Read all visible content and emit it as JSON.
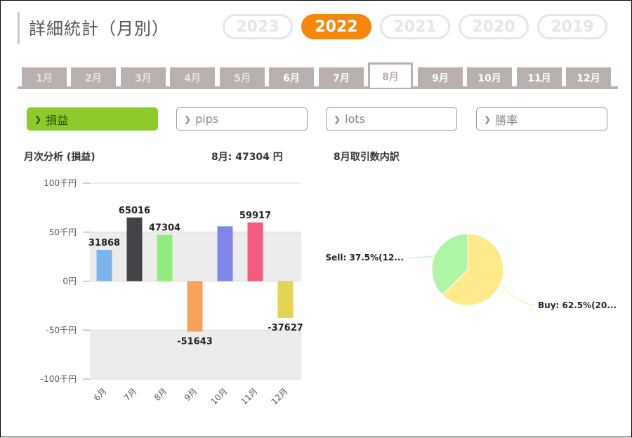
{
  "header": {
    "title": "詳細統計（月別）"
  },
  "years": [
    {
      "label": "2023",
      "state": "disabled"
    },
    {
      "label": "2022",
      "state": "active"
    },
    {
      "label": "2021",
      "state": "disabled"
    },
    {
      "label": "2020",
      "state": "disabled"
    },
    {
      "label": "2019",
      "state": "disabled"
    }
  ],
  "months": [
    {
      "label": "1月",
      "state": "disabled"
    },
    {
      "label": "2月",
      "state": "disabled"
    },
    {
      "label": "3月",
      "state": "disabled"
    },
    {
      "label": "4月",
      "state": "disabled"
    },
    {
      "label": "5月",
      "state": "disabled"
    },
    {
      "label": "6月",
      "state": "enabled"
    },
    {
      "label": "7月",
      "state": "enabled"
    },
    {
      "label": "8月",
      "state": "active"
    },
    {
      "label": "9月",
      "state": "enabled"
    },
    {
      "label": "10月",
      "state": "enabled"
    },
    {
      "label": "11月",
      "state": "enabled"
    },
    {
      "label": "12月",
      "state": "enabled"
    }
  ],
  "metrics": [
    {
      "label": "損益",
      "active": true
    },
    {
      "label": "pips",
      "active": false
    },
    {
      "label": "lots",
      "active": false
    },
    {
      "label": "勝率",
      "active": false
    }
  ],
  "left_panel": {
    "title": "月次分析 (損益)",
    "summary": "8月:  47304 円"
  },
  "right_panel": {
    "title": "8月取引数内訳"
  },
  "chart_data": [
    {
      "type": "bar",
      "categories": [
        "6月",
        "7月",
        "8月",
        "9月",
        "10月",
        "11月",
        "12月"
      ],
      "values": [
        31868,
        65016,
        47304,
        -51643,
        56000,
        59917,
        -37627
      ],
      "data_labels": [
        "31868",
        "65016",
        "47304",
        "-51643",
        "",
        "59917",
        "-37627"
      ],
      "colors": [
        "#7cb5ec",
        "#434348",
        "#90ed7d",
        "#f7a35c",
        "#8085e9",
        "#f15c80",
        "#e4d354"
      ],
      "yticks": [
        {
          "value": 100000,
          "label": "100千円"
        },
        {
          "value": 50000,
          "label": "50千円"
        },
        {
          "value": 0,
          "label": "0円"
        },
        {
          "value": -50000,
          "label": "-50千円"
        },
        {
          "value": -100000,
          "label": "-100千円"
        }
      ],
      "ylim": [
        -100000,
        100000
      ]
    },
    {
      "type": "pie",
      "slices": [
        {
          "label": "Buy: 62.5%(20...",
          "value": 62.5,
          "color": "#ffe98a"
        },
        {
          "label": "Sell: 37.5%(12...",
          "value": 37.5,
          "color": "#aef5a8"
        }
      ]
    }
  ]
}
